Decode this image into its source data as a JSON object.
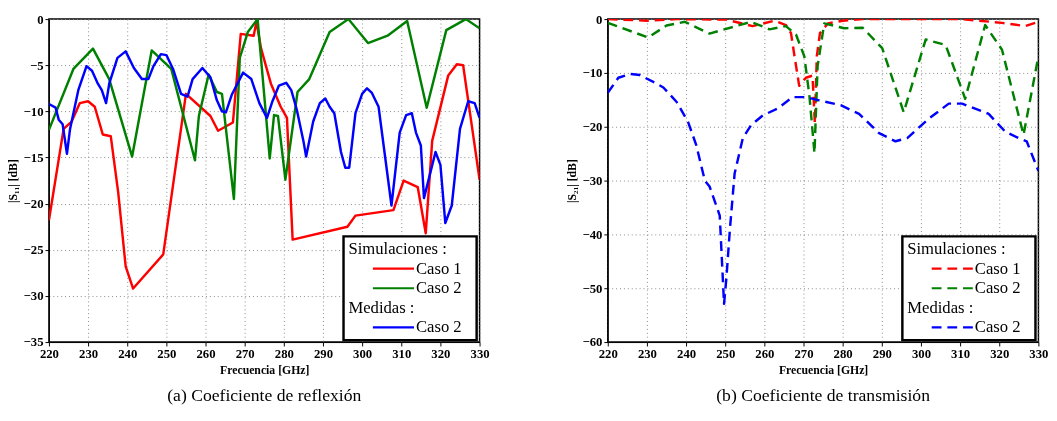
{
  "chart_data": [
    {
      "type": "line",
      "title": "(a) Coeficiente de reflexión",
      "xlabel": "Frecuencia [GHz]",
      "ylabel": "|S₁₁| [dB]",
      "legend_title": "Simulaciones :",
      "annotations": [
        "Medidas :"
      ],
      "legend": "bottom right",
      "grid": true,
      "line_style": "solid",
      "xlim": [
        220,
        330
      ],
      "xticks": [
        220,
        230,
        240,
        250,
        260,
        270,
        280,
        290,
        300,
        310,
        320,
        330
      ],
      "ylim": [
        -35,
        0
      ],
      "yticks": [
        -35,
        -30,
        -25,
        -20,
        -15,
        -10,
        -5,
        0
      ],
      "series": [
        {
          "name": "Caso 1",
          "color": "#ff0000",
          "x": [
            220,
            223.75,
            225.8,
            227.9,
            230,
            231.7,
            233.75,
            235.8,
            237.7,
            239.6,
            241.5,
            249.2,
            255,
            261.25,
            263.2,
            267,
            269,
            272.3,
            273,
            274.2,
            276.7,
            279.2,
            280.8,
            282.25,
            296.25,
            298.3,
            308,
            310.6,
            314.2,
            316.25,
            317.9,
            322,
            324.2,
            325.8,
            330
          ],
          "values": [
            -21.8,
            -11.9,
            -11.1,
            -9.1,
            -8.9,
            -9.5,
            -12.5,
            -12.7,
            -18.8,
            -26.8,
            -29.2,
            -25.5,
            -8.1,
            -10.5,
            -12.1,
            -11.2,
            -1.6,
            -1.8,
            -0.3,
            -3.2,
            -7,
            -9.5,
            -10.7,
            -23.9,
            -22.5,
            -21.3,
            -20.7,
            -17.5,
            -18.2,
            -23.2,
            -13.2,
            -6.1,
            -4.9,
            -5,
            -17.4
          ]
        },
        {
          "name": "Caso 2",
          "color": "#008000",
          "x": [
            220,
            226.25,
            231.25,
            235.4,
            241.25,
            246.25,
            251.25,
            257.3,
            258.3,
            260.8,
            262.9,
            264.2,
            267.25,
            268.75,
            270.8,
            273.3,
            276.4,
            277.5,
            278.5,
            280.4,
            283.5,
            286.5,
            291.7,
            296.5,
            301.5,
            306.5,
            311.5,
            316.5,
            321.5,
            326.5,
            330
          ],
          "values": [
            -12,
            -5.4,
            -3.2,
            -6.5,
            -14.9,
            -3.4,
            -5.4,
            -15.3,
            -10.5,
            -6,
            -7.9,
            -8.1,
            -19.5,
            -4.2,
            -1.4,
            0,
            -15.1,
            -10.4,
            -10.5,
            -17.4,
            -7.9,
            -6.5,
            -1.4,
            0,
            -2.6,
            -1.8,
            -0.2,
            -9.6,
            -1.2,
            0,
            -1
          ]
        },
        {
          "name": "Caso 2",
          "color": "#0000ff",
          "x": [
            220,
            221.7,
            222.5,
            223.5,
            224.6,
            225.4,
            227.5,
            229.6,
            231,
            232.5,
            233.5,
            234.6,
            235.4,
            237.5,
            239.6,
            241.7,
            243.75,
            245.4,
            246.7,
            248.6,
            250,
            251.7,
            253.75,
            255.4,
            256.7,
            259.2,
            261.25,
            262.9,
            264.2,
            265.2,
            266.7,
            269.6,
            271.7,
            273.75,
            275.7,
            277.1,
            278.75,
            280.6,
            281.9,
            283.3,
            285,
            285.7,
            287.5,
            289.2,
            290.6,
            291.7,
            292.9,
            294.6,
            295.7,
            296.7,
            298.3,
            300,
            301.25,
            302.5,
            304.2,
            307.5,
            309.6,
            311.25,
            312.7,
            313.75,
            315,
            315.8,
            318.75,
            320,
            321.25,
            322.9,
            325,
            327.1,
            328.75,
            330
          ],
          "values": [
            -9.2,
            -9.6,
            -10.9,
            -11.4,
            -14.6,
            -11.9,
            -7.7,
            -5.1,
            -5.6,
            -7,
            -7.7,
            -9.1,
            -7,
            -4.2,
            -3.5,
            -5.3,
            -6.5,
            -6.5,
            -5.1,
            -3.8,
            -3.9,
            -5.4,
            -8.1,
            -8.4,
            -6.5,
            -5.3,
            -6.3,
            -8.8,
            -10,
            -10.1,
            -8.2,
            -5.8,
            -6.5,
            -9.1,
            -10.7,
            -8.9,
            -7.2,
            -6.9,
            -7.7,
            -9.8,
            -13.2,
            -14.9,
            -11.1,
            -9.1,
            -8.6,
            -9.5,
            -10.2,
            -14.4,
            -16.1,
            -16.1,
            -10.2,
            -8.1,
            -7.5,
            -8,
            -9.5,
            -20.2,
            -12.3,
            -10.4,
            -10.2,
            -12.3,
            -13.7,
            -19.4,
            -14.4,
            -15.8,
            -22.1,
            -20.2,
            -11.9,
            -8.9,
            -9.1,
            -10.7
          ]
        }
      ]
    },
    {
      "type": "line",
      "title": "(b) Coeficiente de transmisión",
      "xlabel": "Frecuencia [GHz]",
      "ylabel": "|S₂₁| [dB]",
      "legend_title": "Simulaciones :",
      "annotations": [
        "Medidas :"
      ],
      "legend": "bottom right",
      "grid": true,
      "line_style": "dashed",
      "xlim": [
        220,
        330
      ],
      "xticks": [
        220,
        230,
        240,
        250,
        260,
        270,
        280,
        290,
        300,
        310,
        320,
        330
      ],
      "ylim": [
        -60,
        0
      ],
      "yticks": [
        -60,
        -50,
        -40,
        -30,
        -20,
        -10,
        0
      ],
      "series": [
        {
          "name": "Caso 1",
          "color": "#ff0000",
          "x": [
            220,
            230,
            237.6,
            250.3,
            257,
            262.6,
            265.5,
            266.8,
            267.7,
            268.9,
            270.6,
            272.3,
            272.9,
            273.4,
            274.2,
            276.2,
            280,
            285,
            310.5,
            320.7,
            326.6,
            330
          ],
          "values": [
            0,
            -0.3,
            0,
            -0.1,
            -1.3,
            -0.3,
            -1.1,
            -2.6,
            -6.9,
            -12.4,
            -10.9,
            -10.5,
            -19.4,
            -6.9,
            -2.6,
            -0.8,
            -0.3,
            0,
            0,
            -0.7,
            -1.3,
            -0.5
          ]
        },
        {
          "name": "Caso 2",
          "color": "#008000",
          "x": [
            220,
            230.3,
            235,
            239.7,
            246,
            256.6,
            261.3,
            265.5,
            268.1,
            270.2,
            271.5,
            272.8,
            273.6,
            275.3,
            280.4,
            285.1,
            290.1,
            295.6,
            301.2,
            306.3,
            311.3,
            316.4,
            320.7,
            326.2,
            330
          ],
          "values": [
            -0.7,
            -3.4,
            -1.2,
            -0.5,
            -2.7,
            -0.5,
            -1.9,
            -1.3,
            -2.9,
            -6.9,
            -14.2,
            -24.9,
            -8.7,
            -0.8,
            -1.7,
            -1.6,
            -5.4,
            -17.3,
            -3.8,
            -4.8,
            -14.8,
            -1.1,
            -5.7,
            -21.5,
            -6.9
          ]
        },
        {
          "name": "Caso 2",
          "color": "#0000ff",
          "x": [
            220,
            222.7,
            225.7,
            228.2,
            232,
            234.2,
            237.6,
            240.5,
            242.6,
            244.8,
            246,
            248.6,
            249.7,
            250.3,
            251.2,
            252.4,
            254.5,
            256.6,
            259.6,
            263.4,
            267.2,
            270.6,
            274,
            279.5,
            284.2,
            289.3,
            293.5,
            296.5,
            302,
            307.1,
            310.5,
            317.3,
            321.5,
            324.9,
            327,
            330
          ],
          "values": [
            -13.7,
            -10.9,
            -10.2,
            -10.4,
            -11.8,
            -12.7,
            -15.4,
            -19.1,
            -23.4,
            -30,
            -31.1,
            -36.5,
            -52.9,
            -48.1,
            -39,
            -28.7,
            -22.1,
            -19.7,
            -17.9,
            -16.6,
            -14.5,
            -14.5,
            -15.1,
            -16,
            -17.6,
            -21.2,
            -22.7,
            -22.1,
            -18.5,
            -15.7,
            -15.7,
            -17.6,
            -20.9,
            -22.1,
            -22.7,
            -28.2
          ]
        }
      ]
    }
  ]
}
